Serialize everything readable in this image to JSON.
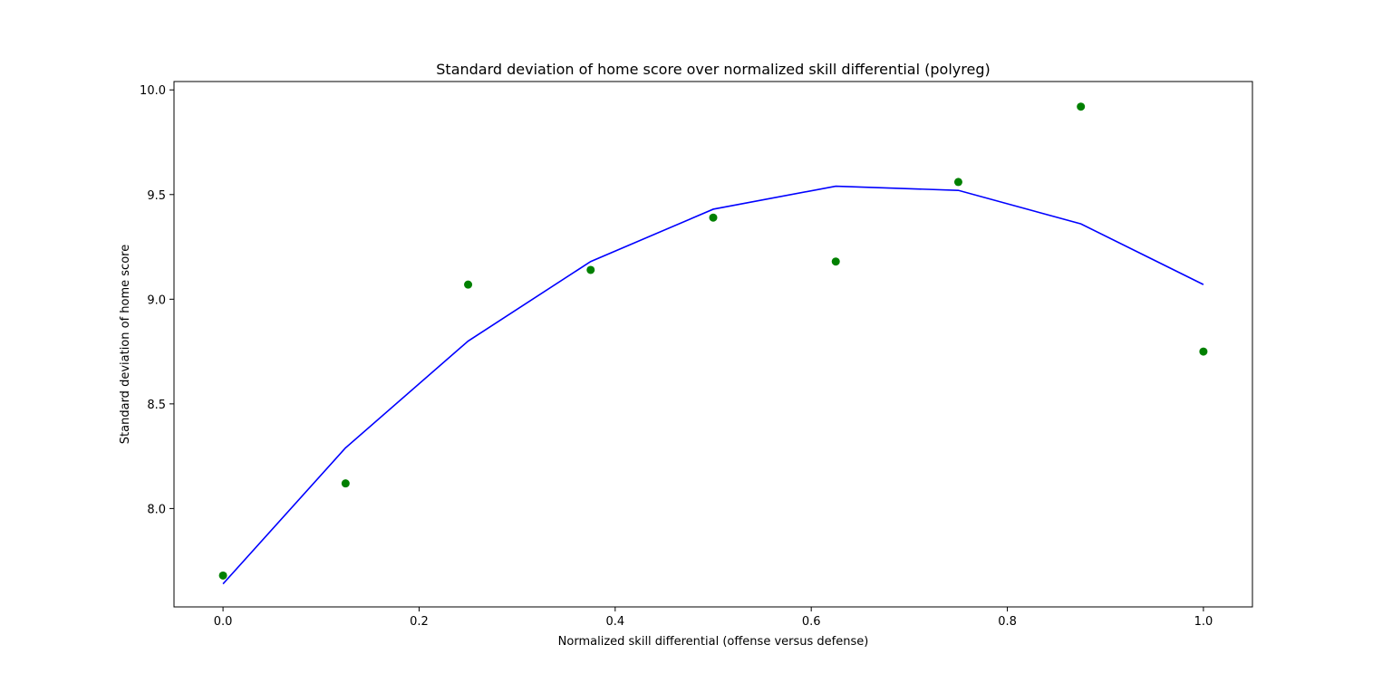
{
  "chart_data": {
    "type": "scatter",
    "title": "Standard deviation of home score over normalized skill differential (polyreg)",
    "xlabel": "Normalized skill differential (offense versus defense)",
    "ylabel": "Standard deviation of home score",
    "xlim": [
      -0.05,
      1.05
    ],
    "ylim": [
      7.53,
      10.04
    ],
    "xticks": [
      0.0,
      0.2,
      0.4,
      0.6,
      0.8,
      1.0
    ],
    "xtick_labels": [
      "0.0",
      "0.2",
      "0.4",
      "0.6",
      "0.8",
      "1.0"
    ],
    "yticks": [
      8.0,
      8.5,
      9.0,
      9.5,
      10.0
    ],
    "ytick_labels": [
      "8.0",
      "8.5",
      "9.0",
      "9.5",
      "10.0"
    ],
    "grid": false,
    "series": [
      {
        "kind": "points",
        "color": "#008000",
        "x": [
          0.0,
          0.125,
          0.25,
          0.375,
          0.5,
          0.625,
          0.75,
          0.875,
          1.0
        ],
        "y": [
          7.68,
          8.12,
          9.07,
          9.14,
          9.39,
          9.18,
          9.56,
          9.92,
          8.75
        ]
      },
      {
        "kind": "line",
        "color": "#0000ff",
        "x": [
          0.0,
          0.125,
          0.25,
          0.375,
          0.5,
          0.625,
          0.75,
          0.875,
          1.0
        ],
        "y": [
          7.64,
          8.29,
          8.8,
          9.18,
          9.43,
          9.54,
          9.52,
          9.36,
          9.07
        ]
      }
    ]
  }
}
